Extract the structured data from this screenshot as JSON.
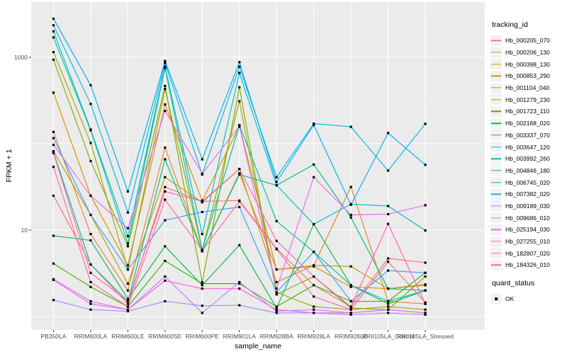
{
  "chart_data": {
    "type": "line",
    "xlabel": "sample_name",
    "ylabel": "FPKM + 1",
    "y_scale": "log10",
    "y_tick_labels": [
      "1000",
      "10"
    ],
    "y_tick_values": [
      1000,
      10
    ],
    "y_major_gridlines": [
      1,
      10,
      100,
      1000
    ],
    "y_minor_gridlines": [
      3.162,
      31.62,
      316.2,
      3162
    ],
    "ylim": [
      0.66,
      4350
    ],
    "grid": true,
    "legend_position": "right",
    "categories": [
      "PB350LA",
      "RRIM600LA",
      "RRIM600LE",
      "RRIM600SE",
      "RRIM600PE",
      "RRIM901LA",
      "RRIM928BA",
      "RRIM928LA",
      "RRIM928LE",
      "RRII105LA_Control",
      "RRII105LA_Stressed"
    ],
    "series": [
      {
        "name": "Hb_000205_070",
        "color": "#F8766D",
        "values": [
          25,
          4.0,
          1.4,
          31.5,
          21.5,
          22,
          6.1,
          2.3,
          1.3,
          4.7,
          4.2
        ]
      },
      {
        "name": "Hb_000206_130",
        "color": "#EA8331",
        "values": [
          137,
          9.0,
          2.0,
          90,
          5.7,
          45.5,
          3.5,
          3.9,
          31.6,
          1.5,
          1.4
        ]
      },
      {
        "name": "Hb_000398_130",
        "color": "#D89000",
        "values": [
          390,
          25,
          3.9,
          285,
          22,
          158,
          3.5,
          3.8,
          2.2,
          2.1,
          2.35
        ]
      },
      {
        "name": "Hb_000853_290",
        "color": "#C09B00",
        "values": [
          82,
          15,
          2.4,
          41,
          21,
          51,
          2.5,
          3.9,
          3.8,
          2.1,
          2.3
        ]
      },
      {
        "name": "Hb_001104_040",
        "color": "#A3A500",
        "values": [
          1150,
          102,
          3.5,
          430,
          5.9,
          310,
          1.9,
          1.3,
          1.2,
          1.3,
          1.2
        ]
      },
      {
        "name": "Hb_001279_230",
        "color": "#7CAE00",
        "values": [
          940,
          63,
          6.5,
          467,
          2.5,
          450,
          1.8,
          2.9,
          1.25,
          1.2,
          2.9
        ]
      },
      {
        "name": "Hb_001723_110",
        "color": "#39B600",
        "values": [
          4.1,
          2.2,
          1.3,
          4.4,
          2.4,
          2.4,
          1.3,
          2.3,
          1.5,
          1.5,
          3.2
        ]
      },
      {
        "name": "Hb_002168_020",
        "color": "#00BB4E",
        "values": [
          8.6,
          7.6,
          1.6,
          6.5,
          2.3,
          6.7,
          1.25,
          11.7,
          2.3,
          1.4,
          2.0
        ]
      },
      {
        "name": "Hb_003337_070",
        "color": "#00BF7D",
        "values": [
          80,
          4.0,
          1.5,
          66,
          5.7,
          44,
          33,
          57.5,
          14,
          2.1,
          2.0
        ]
      },
      {
        "name": "Hb_003647_120",
        "color": "#00C1A3",
        "values": [
          1700,
          143,
          7.0,
          750,
          5.9,
          164,
          12.7,
          5.6,
          2.3,
          1.5,
          2.0
        ]
      },
      {
        "name": "Hb_003992_260",
        "color": "#00BFC4",
        "values": [
          2000,
          146,
          8.5,
          780,
          9.0,
          660,
          33,
          11.7,
          20,
          19,
          9.9
        ]
      },
      {
        "name": "Hb_004846_180",
        "color": "#00BAE0",
        "values": [
          2350,
          289,
          16,
          860,
          44,
          780,
          41,
          171,
          157,
          48.8,
          170
        ]
      },
      {
        "name": "Hb_006745_020",
        "color": "#00B0F6",
        "values": [
          2800,
          476,
          28,
          908,
          66,
          880,
          36,
          165,
          19.6,
          133,
          57
        ]
      },
      {
        "name": "Hb_007382_020",
        "color": "#35A2FF",
        "values": [
          116,
          15,
          3.5,
          13,
          16.2,
          18.5,
          1.9,
          5.6,
          1.5,
          3.4,
          3.2
        ]
      },
      {
        "name": "Hb_009189_030",
        "color": "#9590FF",
        "values": [
          1.55,
          1.2,
          1.15,
          1.5,
          1.33,
          1.35,
          1.1,
          1.1,
          1.05,
          1.1,
          1.05
        ]
      },
      {
        "name": "Hb_009686_010",
        "color": "#C77CFF",
        "values": [
          2.7,
          1.5,
          1.2,
          2.9,
          1.1,
          2.5,
          1.15,
          1.2,
          1.1,
          1.2,
          1.1
        ]
      },
      {
        "name": "Hb_025194_030",
        "color": "#E76BF3",
        "values": [
          97,
          25,
          10.5,
          240,
          45,
          160,
          2.1,
          41,
          15,
          15.3,
          19.4
        ]
      },
      {
        "name": "Hb_027255_010",
        "color": "#FA62DB",
        "values": [
          2.65,
          1.4,
          1.2,
          2.6,
          2.1,
          2.1,
          1.2,
          1.1,
          1.1,
          1.2,
          1.1
        ]
      },
      {
        "name": "Hb_182807_020",
        "color": "#FF62BC",
        "values": [
          78,
          3.2,
          1.5,
          28,
          21.5,
          51,
          7.5,
          2.9,
          1.3,
          11.8,
          1.4
        ]
      },
      {
        "name": "Hb_184326_010",
        "color": "#FF6A98",
        "values": [
          54,
          2.5,
          1.3,
          22.5,
          5.8,
          21.5,
          6.0,
          1.7,
          1.2,
          4.3,
          1.45
        ]
      }
    ],
    "legend": {
      "title": "tracking_id"
    },
    "quant_legend": {
      "title": "quant_status",
      "items": [
        {
          "label": "OK",
          "marker": "black-square"
        }
      ]
    },
    "marker": {
      "shape": "square",
      "color": "#000000",
      "size": 3.2
    },
    "style": {
      "panel_bg": "#EBEBEB",
      "grid_color": "#FFFFFF",
      "tick_color": "#333333",
      "tick_label_color": "#4D4D4D",
      "axis_title_color": "#000000",
      "legend_key_bg": "#F2F2F2"
    }
  }
}
